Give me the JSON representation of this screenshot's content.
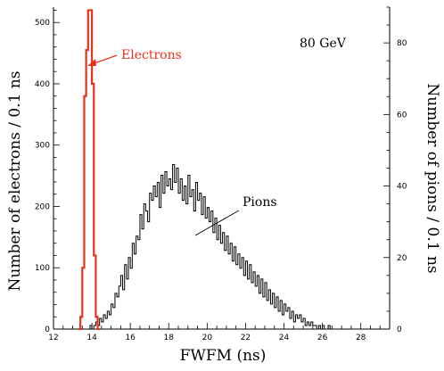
{
  "chart_data": {
    "type": "histogram",
    "energy_label": "80 GeV",
    "xlabel": "FWFM (ns)",
    "ylabel_left": "Number of electrons / 0.1 ns",
    "ylabel_right": "Number of pions / 0.1 ns",
    "xlim": [
      12,
      29.5
    ],
    "ylim_left": [
      0,
      525
    ],
    "ylim_right": [
      0,
      90
    ],
    "x_ticks": [
      12,
      14,
      16,
      18,
      20,
      22,
      24,
      26,
      28
    ],
    "y_ticks_left": [
      0,
      100,
      200,
      300,
      400,
      500
    ],
    "y_ticks_right": [
      0,
      20,
      40,
      60,
      80
    ],
    "grid": false,
    "colors": {
      "electrons": "#e8321e",
      "pions": "#000000"
    },
    "series": [
      {
        "name": "Electrons",
        "axis": "left",
        "bin_width": 0.1,
        "bin_start": 13.3,
        "values": [
          0,
          20,
          100,
          380,
          455,
          520,
          520,
          400,
          120,
          20,
          0
        ]
      },
      {
        "name": "Pions",
        "axis": "right",
        "bin_width": 0.1,
        "bin_start": 13.9,
        "values": [
          1,
          0,
          1,
          2,
          1,
          3,
          2,
          4,
          3,
          5,
          4,
          7,
          6,
          10,
          9,
          12,
          15,
          11,
          18,
          14,
          20,
          17,
          24,
          21,
          26,
          25,
          32,
          28,
          35,
          33,
          30,
          38,
          36,
          40,
          37,
          41,
          34,
          43,
          38,
          44,
          40,
          42,
          39,
          46,
          41,
          45,
          38,
          42,
          36,
          40,
          35,
          43,
          37,
          39,
          33,
          41,
          36,
          38,
          32,
          37,
          31,
          34,
          30,
          33,
          27,
          31,
          25,
          29,
          24,
          27,
          22,
          26,
          21,
          24,
          19,
          23,
          18,
          21,
          17,
          20,
          15,
          19,
          14,
          18,
          13,
          16,
          12,
          15,
          10,
          14,
          9,
          13,
          8,
          11,
          7,
          10,
          6,
          9,
          5,
          8,
          4,
          7,
          5,
          6,
          3,
          5,
          2,
          4,
          3,
          4,
          2,
          3,
          1,
          2,
          1,
          2,
          1,
          1,
          0,
          1,
          0,
          1,
          0,
          0,
          1,
          0
        ]
      }
    ],
    "annotations": [
      {
        "text": "Electrons",
        "color": "#e8321e"
      },
      {
        "text": "Pions",
        "color": "#000000"
      }
    ]
  }
}
